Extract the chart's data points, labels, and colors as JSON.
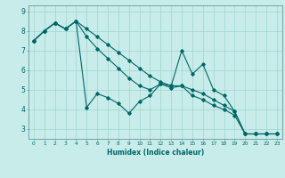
{
  "title": "",
  "xlabel": "Humidex (Indice chaleur)",
  "bg_color": "#c8ecea",
  "grid_color": "#a0d4d0",
  "line_color": "#006666",
  "spine_color": "#669999",
  "xlim": [
    -0.5,
    23.5
  ],
  "ylim": [
    2.5,
    9.3
  ],
  "yticks": [
    3,
    4,
    5,
    6,
    7,
    8,
    9
  ],
  "xticks": [
    0,
    1,
    2,
    3,
    4,
    5,
    6,
    7,
    8,
    9,
    10,
    11,
    12,
    13,
    14,
    15,
    16,
    17,
    18,
    19,
    20,
    21,
    22,
    23
  ],
  "lines": [
    {
      "x": [
        0,
        1,
        2,
        3,
        4,
        5,
        6,
        7,
        8,
        9,
        10,
        11,
        12,
        13,
        14,
        15,
        16,
        17,
        18,
        19,
        20,
        21,
        22,
        23
      ],
      "y": [
        7.5,
        8.0,
        8.4,
        8.1,
        8.5,
        4.1,
        4.8,
        4.6,
        4.3,
        3.8,
        4.4,
        4.7,
        5.3,
        5.2,
        7.0,
        5.8,
        6.3,
        5.0,
        4.7,
        3.9,
        2.75,
        2.75,
        2.75,
        2.75
      ]
    },
    {
      "x": [
        0,
        1,
        2,
        3,
        4,
        5,
        6,
        7,
        8,
        9,
        10,
        11,
        12,
        13,
        14,
        15,
        16,
        17,
        18,
        19,
        20,
        21,
        22,
        23
      ],
      "y": [
        7.5,
        8.0,
        8.4,
        8.1,
        8.5,
        8.1,
        7.7,
        7.3,
        6.9,
        6.5,
        6.1,
        5.7,
        5.4,
        5.2,
        5.2,
        5.0,
        4.8,
        4.5,
        4.2,
        3.9,
        2.75,
        2.75,
        2.75,
        2.75
      ]
    },
    {
      "x": [
        0,
        1,
        2,
        3,
        4,
        5,
        6,
        7,
        8,
        9,
        10,
        11,
        12,
        13,
        14,
        15,
        16,
        17,
        18,
        19,
        20,
        21,
        22,
        23
      ],
      "y": [
        7.5,
        8.0,
        8.4,
        8.1,
        8.5,
        7.7,
        7.1,
        6.6,
        6.1,
        5.6,
        5.2,
        5.0,
        5.3,
        5.1,
        5.2,
        4.7,
        4.5,
        4.2,
        4.0,
        3.7,
        2.75,
        2.75,
        2.75,
        2.75
      ]
    }
  ]
}
